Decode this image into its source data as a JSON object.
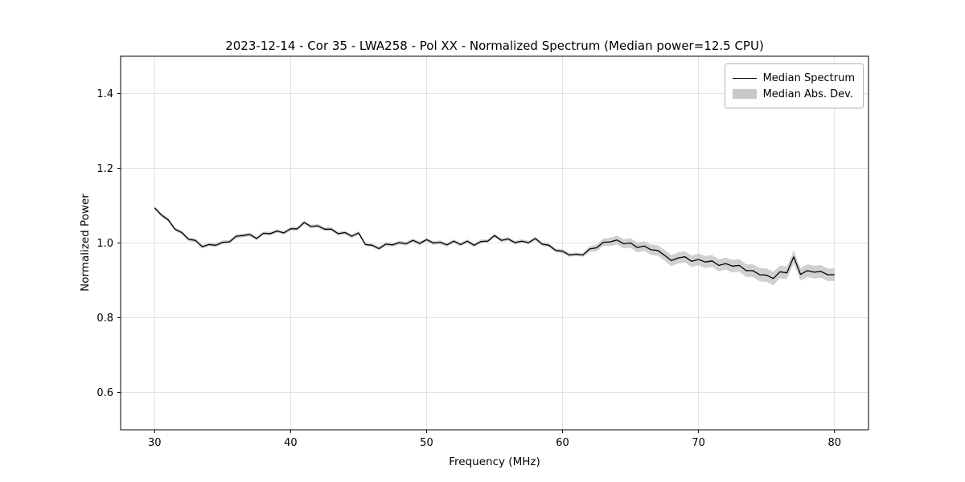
{
  "title": "2023-12-14 - Cor 35 - LWA258 - Pol XX - Normalized Spectrum (Median power=12.5 CPU)",
  "legend": {
    "items": [
      {
        "label": "Median Spectrum",
        "type": "line",
        "color": "#000000"
      },
      {
        "label": "Median Abs. Dev.",
        "type": "patch",
        "color": "#c8c8c8"
      }
    ]
  },
  "chart_data": {
    "type": "line",
    "title": "2023-12-14 - Cor 35 - LWA258 - Pol XX - Normalized Spectrum (Median power=12.5 CPU)",
    "xlabel": "Frequency (MHz)",
    "ylabel": "Normalized Power",
    "xlim": [
      27.5,
      82.5
    ],
    "ylim": [
      0.5,
      1.5
    ],
    "xticks": [
      30,
      40,
      50,
      60,
      70,
      80
    ],
    "yticks": [
      0.6,
      0.8,
      1.0,
      1.2,
      1.4
    ],
    "grid": true,
    "legend_position": "upper right",
    "x": [
      30,
      30.5,
      31,
      31.5,
      32,
      32.5,
      33,
      33.5,
      34,
      34.5,
      35,
      35.5,
      36,
      36.5,
      37,
      37.5,
      38,
      38.5,
      39,
      39.5,
      40,
      40.5,
      41,
      41.5,
      42,
      42.5,
      43,
      43.5,
      44,
      44.5,
      45,
      45.5,
      46,
      46.5,
      47,
      47.5,
      48,
      48.5,
      49,
      49.5,
      50,
      50.5,
      51,
      51.5,
      52,
      52.5,
      53,
      53.5,
      54,
      54.5,
      55,
      55.5,
      56,
      56.5,
      57,
      57.5,
      58,
      58.5,
      59,
      59.5,
      60,
      60.5,
      61,
      61.5,
      62,
      62.5,
      63,
      63.5,
      64,
      64.5,
      65,
      65.5,
      66,
      66.5,
      67,
      67.5,
      68,
      68.5,
      69,
      69.5,
      70,
      70.5,
      71,
      71.5,
      72,
      72.5,
      73,
      73.5,
      74,
      74.5,
      75,
      75.5,
      76,
      76.5,
      77,
      77.5,
      78,
      78.5,
      79,
      79.5,
      80
    ],
    "series": [
      {
        "name": "Median Spectrum",
        "type": "line",
        "color": "#000000",
        "y": [
          1.094,
          1.075,
          1.062,
          1.037,
          1.028,
          1.01,
          1.007,
          0.99,
          0.996,
          0.994,
          1.002,
          1.003,
          1.018,
          1.02,
          1.023,
          1.012,
          1.026,
          1.025,
          1.032,
          1.027,
          1.038,
          1.038,
          1.055,
          1.044,
          1.046,
          1.037,
          1.037,
          1.025,
          1.028,
          1.018,
          1.027,
          0.996,
          0.994,
          0.985,
          0.997,
          0.995,
          1.001,
          0.998,
          1.007,
          0.999,
          1.009,
          1.0,
          1.002,
          0.995,
          1.005,
          0.996,
          1.005,
          0.994,
          1.004,
          1.005,
          1.02,
          1.007,
          1.011,
          1.001,
          1.005,
          1.001,
          1.012,
          0.997,
          0.994,
          0.98,
          0.978,
          0.968,
          0.97,
          0.968,
          0.984,
          0.987,
          1.002,
          1.003,
          1.008,
          0.998,
          1.0,
          0.988,
          0.992,
          0.982,
          0.98,
          0.967,
          0.953,
          0.96,
          0.963,
          0.951,
          0.956,
          0.949,
          0.952,
          0.94,
          0.945,
          0.938,
          0.94,
          0.926,
          0.926,
          0.915,
          0.914,
          0.905,
          0.923,
          0.92,
          0.963,
          0.916,
          0.926,
          0.922,
          0.924,
          0.915,
          0.915
        ]
      },
      {
        "name": "Median Abs. Dev.",
        "type": "band",
        "color": "#c8c8c8",
        "half_width": [
          0.005,
          0.005,
          0.005,
          0.005,
          0.005,
          0.005,
          0.005,
          0.005,
          0.005,
          0.005,
          0.005,
          0.005,
          0.005,
          0.005,
          0.005,
          0.005,
          0.005,
          0.005,
          0.005,
          0.005,
          0.005,
          0.005,
          0.005,
          0.005,
          0.005,
          0.005,
          0.005,
          0.005,
          0.005,
          0.005,
          0.005,
          0.005,
          0.005,
          0.005,
          0.005,
          0.005,
          0.005,
          0.005,
          0.005,
          0.005,
          0.005,
          0.005,
          0.005,
          0.005,
          0.005,
          0.005,
          0.005,
          0.005,
          0.005,
          0.005,
          0.005,
          0.005,
          0.005,
          0.005,
          0.005,
          0.005,
          0.005,
          0.005,
          0.005,
          0.005,
          0.005,
          0.005,
          0.005,
          0.005,
          0.008,
          0.009,
          0.01,
          0.011,
          0.012,
          0.012,
          0.013,
          0.013,
          0.013,
          0.014,
          0.014,
          0.014,
          0.015,
          0.015,
          0.015,
          0.015,
          0.016,
          0.016,
          0.016,
          0.016,
          0.016,
          0.017,
          0.017,
          0.017,
          0.017,
          0.018,
          0.018,
          0.018,
          0.017,
          0.017,
          0.017,
          0.017,
          0.017,
          0.017,
          0.017,
          0.017,
          0.017
        ]
      }
    ]
  }
}
